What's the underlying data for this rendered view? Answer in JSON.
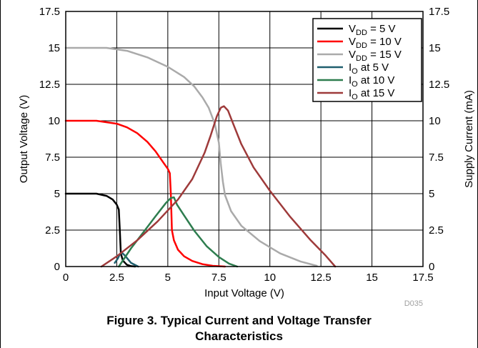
{
  "chart_data": {
    "type": "line",
    "title": "",
    "xlabel": "Input Voltage (V)",
    "ylabel": "Output Voltage (V)",
    "y2label": "Supply Current (mA)",
    "xlim": [
      0,
      17.5
    ],
    "ylim": [
      0,
      17.5
    ],
    "y2lim": [
      0,
      17.5
    ],
    "xticks": [
      "0",
      "2.5",
      "5",
      "7.5",
      "10",
      "12.5",
      "15",
      "17.5"
    ],
    "yticks": [
      "0",
      "2.5",
      "5",
      "7.5",
      "10",
      "12.5",
      "15",
      "17.5"
    ],
    "y2ticks": [
      "0",
      "2.5",
      "5",
      "7.5",
      "10",
      "12.5",
      "15",
      "17.5"
    ],
    "grid": true,
    "legend_position": "top-right",
    "series": [
      {
        "name": "V_DD = 5 V",
        "label_main": "V",
        "label_sub": "DD",
        "label_tail": " = 5 V",
        "color": "#000000",
        "axis": "left",
        "x": [
          0,
          1.5,
          2.0,
          2.3,
          2.5,
          2.6,
          2.65,
          2.7,
          2.8,
          3.0,
          3.2,
          3.4
        ],
        "y": [
          5.0,
          5.0,
          4.85,
          4.6,
          4.25,
          3.9,
          2.5,
          0.9,
          0.4,
          0.12,
          0.03,
          0.0
        ]
      },
      {
        "name": "V_DD = 10 V",
        "label_main": "V",
        "label_sub": "DD",
        "label_tail": " = 10 V",
        "color": "#ff0000",
        "axis": "left",
        "x": [
          0,
          1.5,
          2.5,
          3.0,
          3.5,
          4.0,
          4.4,
          4.8,
          5.0,
          5.1,
          5.15,
          5.2,
          5.3,
          5.5,
          5.8,
          6.2,
          6.7,
          7.2,
          7.8
        ],
        "y": [
          10.0,
          10.0,
          9.8,
          9.55,
          9.15,
          8.55,
          7.9,
          7.1,
          6.7,
          6.4,
          5.0,
          2.5,
          1.8,
          1.15,
          0.7,
          0.38,
          0.16,
          0.05,
          0.0
        ]
      },
      {
        "name": "V_DD = 15 V",
        "label_main": "V",
        "label_sub": "DD",
        "label_tail": " = 15 V",
        "color": "#aaaaaa",
        "axis": "left",
        "x": [
          0,
          2.0,
          3.0,
          4.0,
          5.0,
          5.8,
          6.3,
          6.7,
          7.0,
          7.3,
          7.5,
          7.6,
          7.7,
          7.8,
          8.1,
          8.6,
          9.5,
          10.5,
          11.5,
          12.3
        ],
        "y": [
          15.0,
          15.0,
          14.8,
          14.35,
          13.7,
          13.0,
          12.35,
          11.6,
          10.9,
          9.8,
          8.5,
          7.0,
          5.8,
          4.9,
          3.8,
          2.8,
          1.75,
          0.9,
          0.35,
          0.05
        ]
      },
      {
        "name": "I_O at 5 V",
        "label_main": "I",
        "label_sub": "O",
        "label_tail": " at 5 V",
        "color": "#1f5f6e",
        "axis": "right",
        "x": [
          2.4,
          2.55,
          2.65,
          2.75,
          2.9,
          3.2,
          3.55
        ],
        "y": [
          0.25,
          0.55,
          0.85,
          0.95,
          0.75,
          0.25,
          0.0
        ]
      },
      {
        "name": "I_O at 10 V",
        "label_main": "I",
        "label_sub": "O",
        "label_tail": " at 10 V",
        "color": "#2e7d4f",
        "axis": "right",
        "x": [
          2.6,
          3.2,
          3.8,
          4.4,
          4.9,
          5.15,
          5.3,
          5.45,
          5.8,
          6.3,
          6.9,
          7.5,
          8.0,
          8.4
        ],
        "y": [
          0.0,
          1.25,
          2.35,
          3.45,
          4.35,
          4.7,
          4.75,
          4.25,
          3.5,
          2.45,
          1.4,
          0.65,
          0.2,
          0.0
        ]
      },
      {
        "name": "I_O at 15 V",
        "label_main": "I",
        "label_sub": "O",
        "label_tail": " at 15 V",
        "color": "#9e3a3a",
        "axis": "right",
        "x": [
          1.75,
          2.5,
          3.5,
          4.5,
          5.5,
          6.2,
          6.8,
          7.1,
          7.4,
          7.6,
          7.75,
          7.95,
          8.2,
          8.6,
          9.2,
          10.0,
          11.0,
          12.0,
          12.7,
          13.2
        ],
        "y": [
          0.0,
          0.7,
          1.8,
          3.1,
          4.6,
          6.0,
          7.8,
          9.0,
          10.3,
          10.9,
          11.0,
          10.7,
          9.8,
          8.4,
          6.8,
          5.2,
          3.4,
          1.8,
          0.8,
          0.0
        ]
      }
    ]
  },
  "figure_code": "D035",
  "caption": "Figure 3. Typical Current and Voltage Transfer Characteristics"
}
